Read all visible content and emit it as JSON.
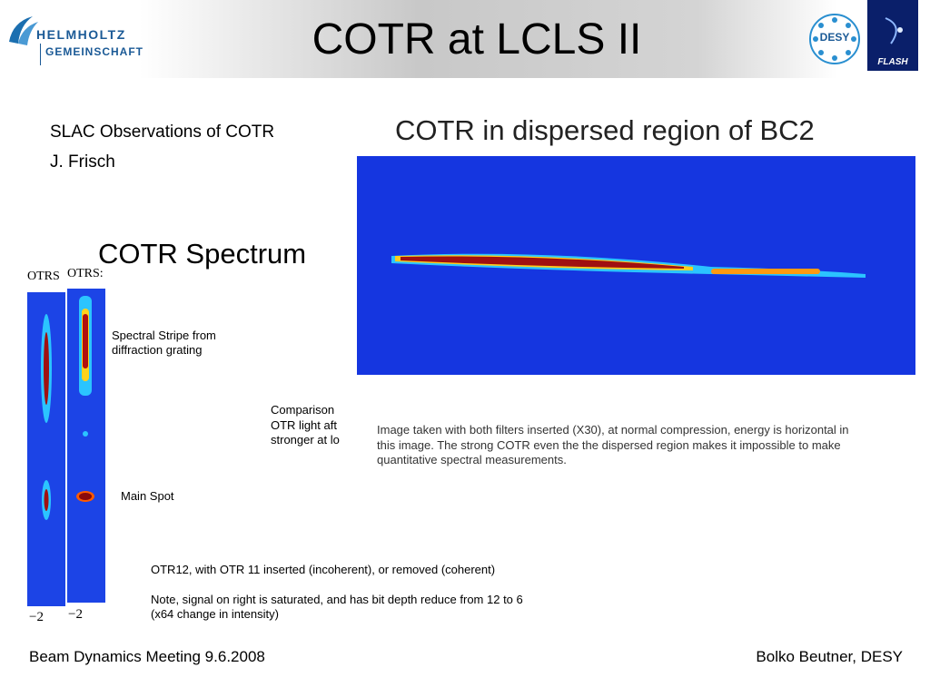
{
  "header": {
    "title": "COTR at LCLS II",
    "logo_left": [
      "HELMHOLTZ",
      "GEMEINSCHAFT"
    ],
    "logo_right": [
      "DESY",
      "FLASH"
    ]
  },
  "intro": [
    "SLAC Observations of COTR",
    "J. Frisch"
  ],
  "spectrum": {
    "title": "COTR Spectrum",
    "image_labels": [
      "OTRS",
      "OTRS:"
    ],
    "axis_labels": [
      "−2",
      "−2"
    ],
    "annotations": [
      [
        "Spectral Stripe from",
        "diffraction grating"
      ],
      "Main Spot"
    ],
    "comparison": [
      "Comparison",
      "OTR light aft",
      "stronger at lo"
    ]
  },
  "dispersed": {
    "title": "COTR in dispersed region of BC2",
    "caption": [
      "Image taken with both filters inserted (X30), at normal compression, energy is horizontal in",
      "this image. The strong COTR even the the dispersed region makes it impossible to make",
      "quantitative spectral measurements."
    ]
  },
  "notes": [
    "OTR12, with OTR 11 inserted (incoherent), or removed (coherent)",
    "Note, signal on right is saturated, and has bit depth reduce from 12 to 6",
    "(x64 change in intensity)"
  ],
  "footer": {
    "left": "Beam Dynamics Meeting 9.6.2008",
    "right": "Bolko Beutner, DESY"
  }
}
